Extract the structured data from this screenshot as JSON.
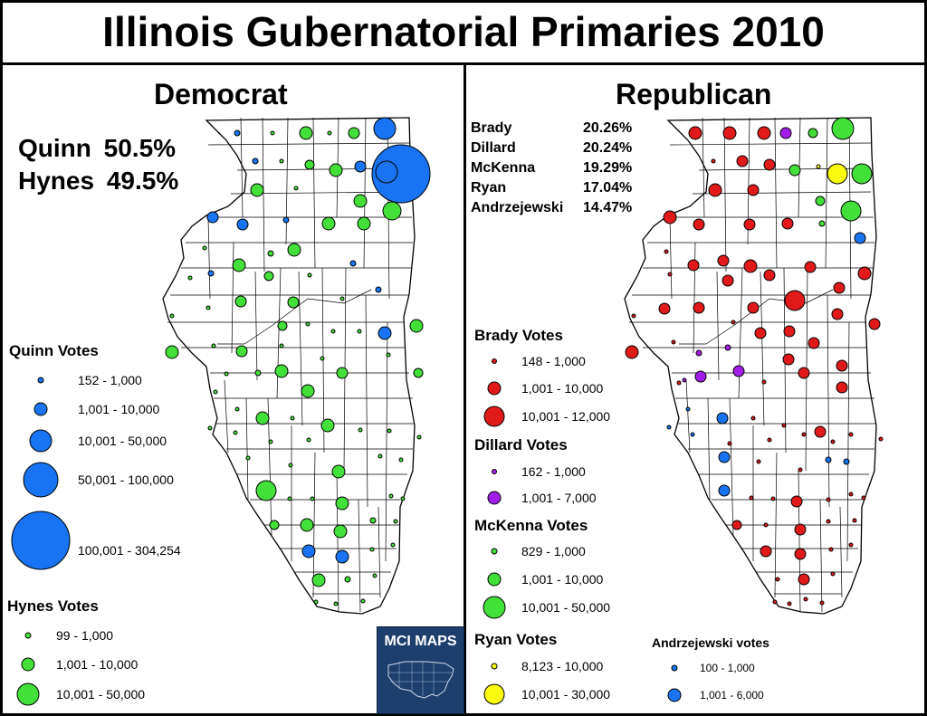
{
  "title": "Illinois Gubernatorial Primaries 2010",
  "colors": {
    "quinn": "#1874f3",
    "hynes": "#44e03a",
    "brady": "#e01a1a",
    "dillard": "#a21ee8",
    "mckenna": "#44e03a",
    "ryan": "#fbfb10",
    "andrzejewski": "#1874f3"
  },
  "democrat": {
    "heading": "Democrat",
    "results": [
      {
        "name": "Quinn",
        "pct": "50.5%"
      },
      {
        "name": "Hynes",
        "pct": "49.5%"
      }
    ],
    "quinn_legend": {
      "title": "Quinn Votes",
      "ranges": [
        "152 - 1,000",
        "1,001 - 10,000",
        "10,001 - 50,000",
        "50,001 - 100,000",
        "100,001 - 304,254"
      ]
    },
    "hynes_legend": {
      "title": "Hynes Votes",
      "ranges": [
        "99 - 1,000",
        "1,001 - 10,000",
        "10,001 - 50,000"
      ]
    }
  },
  "republican": {
    "heading": "Republican",
    "results": [
      {
        "name": "Brady",
        "pct": "20.26%"
      },
      {
        "name": "Dillard",
        "pct": "20.24%"
      },
      {
        "name": "McKenna",
        "pct": "19.29%"
      },
      {
        "name": "Ryan",
        "pct": "17.04%"
      },
      {
        "name": "Andrzejewski",
        "pct": "14.47%"
      }
    ],
    "brady_legend": {
      "title": "Brady Votes",
      "ranges": [
        "148 - 1,000",
        "1,001 - 10,000",
        "10,001 - 12,000"
      ]
    },
    "dillard_legend": {
      "title": "Dillard Votes",
      "ranges": [
        "162 - 1,000",
        "1,001 - 7,000"
      ]
    },
    "mckenna_legend": {
      "title": "McKenna Votes",
      "ranges": [
        "829 - 1,000",
        "1,001 - 10,000",
        "10,001 - 50,000"
      ]
    },
    "ryan_legend": {
      "title": "Ryan Votes",
      "ranges": [
        "8,123 - 10,000",
        "10,001 - 30,000"
      ]
    },
    "andrzejewski_legend": {
      "title": "Andrzejewski votes",
      "ranges": [
        "100 - 1,000",
        "1,001 - 6,000"
      ]
    }
  },
  "logo": {
    "text": "MCI MAPS"
  }
}
